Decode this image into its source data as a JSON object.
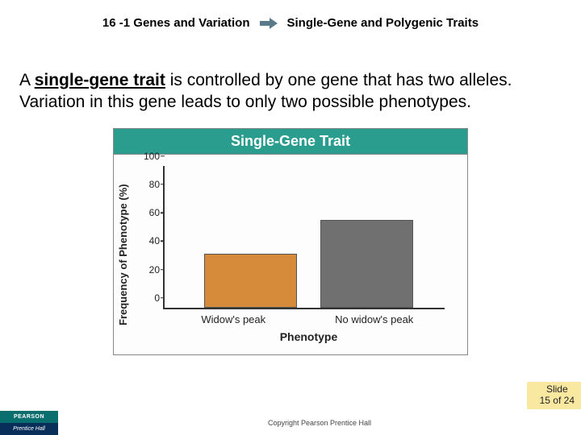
{
  "header": {
    "left": "16 -1 Genes and Variation",
    "right": "Single-Gene and Polygenic Traits"
  },
  "body": {
    "term": "single-gene trait",
    "rest": " is controlled by one gene that has two alleles. Variation in this gene leads to only two possible phenotypes."
  },
  "chart": {
    "title": "Single-Gene Trait",
    "title_bg": "#2a9d8f",
    "title_color": "#ffffff",
    "ylabel": "Frequency of Phenotype\n(%)",
    "xlabel": "Phenotype",
    "ylim": [
      0,
      100
    ],
    "yticks": [
      0,
      20,
      40,
      60,
      80,
      100
    ],
    "categories": [
      "Widow's peak",
      "No widow's peak"
    ],
    "values": [
      38,
      62
    ],
    "bar_colors": [
      "#d68b3a",
      "#707070"
    ],
    "bar_border": "#555555",
    "axis_color": "#333333",
    "bar_width_pct": 32,
    "bar_positions_pct": [
      14,
      54
    ]
  },
  "slidenum": {
    "label": "Slide",
    "current": 15,
    "total": 24
  },
  "footer": {
    "logo_top": "PEARSON",
    "logo_bottom": "Prentice Hall",
    "copyright": "Copyright Pearson Prentice Hall"
  }
}
